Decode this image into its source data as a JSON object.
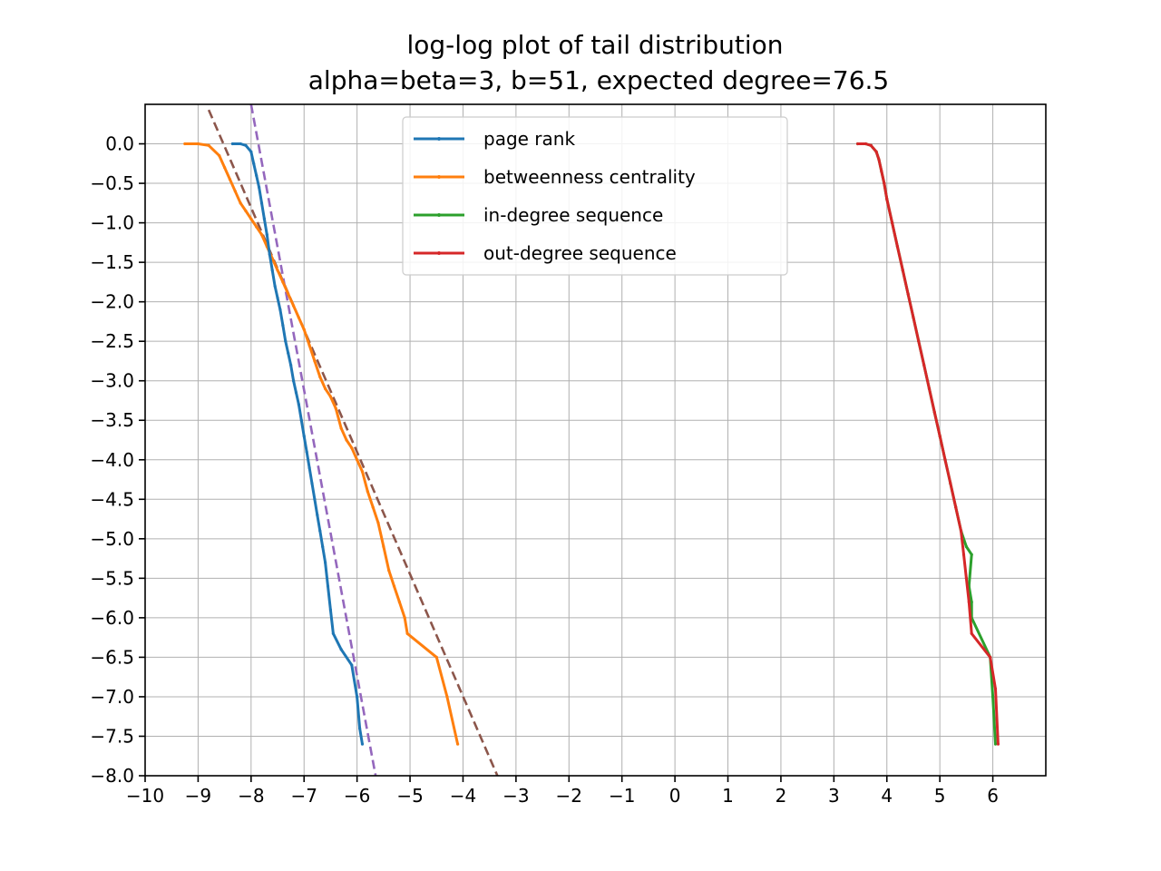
{
  "chart_data": {
    "type": "line",
    "title": "log-log plot of tail distribution",
    "subtitle": "alpha=beta=3, b=51, expected degree=76.5",
    "xlabel": "",
    "ylabel": "",
    "xlim": [
      -10,
      7
    ],
    "ylim": [
      -8,
      0.5
    ],
    "xticks": [
      -10,
      -9,
      -8,
      -7,
      -6,
      -5,
      -4,
      -3,
      -2,
      -1,
      0,
      1,
      2,
      3,
      4,
      5,
      6
    ],
    "xtick_labels": [
      "−10",
      "−9",
      "−8",
      "−7",
      "−6",
      "−5",
      "−4",
      "−3",
      "−2",
      "−1",
      "0",
      "1",
      "2",
      "3",
      "4",
      "5",
      "6"
    ],
    "yticks": [
      0,
      -0.5,
      -1,
      -1.5,
      -2,
      -2.5,
      -3,
      -3.5,
      -4,
      -4.5,
      -5,
      -5.5,
      -6,
      -6.5,
      -7,
      -7.5,
      -8
    ],
    "ytick_labels": [
      "0.0",
      "−0.5",
      "−1.0",
      "−1.5",
      "−2.0",
      "−2.5",
      "−3.0",
      "−3.5",
      "−4.0",
      "−4.5",
      "−5.0",
      "−5.5",
      "−6.0",
      "−6.5",
      "−7.0",
      "−7.5",
      "−8.0"
    ],
    "grid": true,
    "legend_position": "upper-center",
    "series": [
      {
        "name": "page rank",
        "color": "#1f77b4",
        "style": "solid",
        "x": [
          -8.35,
          -8.2,
          -8.1,
          -8.0,
          -7.95,
          -7.9,
          -7.85,
          -7.8,
          -7.75,
          -7.7,
          -7.65,
          -7.6,
          -7.55,
          -7.5,
          -7.45,
          -7.4,
          -7.35,
          -7.3,
          -7.25,
          -7.2,
          -7.15,
          -7.1,
          -7.05,
          -7.0,
          -6.95,
          -6.9,
          -6.85,
          -6.8,
          -6.75,
          -6.7,
          -6.65,
          -6.6,
          -6.55,
          -6.5,
          -6.45,
          -6.3,
          -6.1,
          -6.0,
          -5.95,
          -5.9
        ],
        "y": [
          0.0,
          0.0,
          -0.02,
          -0.1,
          -0.25,
          -0.4,
          -0.55,
          -0.75,
          -0.95,
          -1.15,
          -1.4,
          -1.6,
          -1.8,
          -1.95,
          -2.1,
          -2.3,
          -2.5,
          -2.65,
          -2.8,
          -3.0,
          -3.15,
          -3.3,
          -3.5,
          -3.7,
          -3.9,
          -4.1,
          -4.3,
          -4.5,
          -4.7,
          -4.9,
          -5.1,
          -5.3,
          -5.6,
          -5.9,
          -6.2,
          -6.4,
          -6.6,
          -7.0,
          -7.4,
          -7.6
        ]
      },
      {
        "name": "betweenness centrality",
        "color": "#ff7f0e",
        "style": "solid",
        "x": [
          -9.25,
          -9.0,
          -8.8,
          -8.6,
          -8.5,
          -8.4,
          -8.3,
          -8.2,
          -8.1,
          -8.0,
          -7.9,
          -7.8,
          -7.7,
          -7.6,
          -7.5,
          -7.4,
          -7.3,
          -7.2,
          -7.1,
          -7.0,
          -6.9,
          -6.8,
          -6.7,
          -6.6,
          -6.5,
          -6.4,
          -6.3,
          -6.2,
          -6.1,
          -6.0,
          -5.9,
          -5.8,
          -5.7,
          -5.6,
          -5.5,
          -5.4,
          -5.3,
          -5.2,
          -5.1,
          -5.05,
          -4.5,
          -4.3,
          -4.1
        ],
        "y": [
          0.0,
          0.0,
          -0.02,
          -0.15,
          -0.3,
          -0.45,
          -0.6,
          -0.75,
          -0.85,
          -0.95,
          -1.05,
          -1.15,
          -1.3,
          -1.45,
          -1.6,
          -1.75,
          -1.9,
          -2.05,
          -2.2,
          -2.35,
          -2.55,
          -2.75,
          -2.95,
          -3.1,
          -3.2,
          -3.35,
          -3.6,
          -3.75,
          -3.85,
          -4.0,
          -4.15,
          -4.4,
          -4.6,
          -4.8,
          -5.1,
          -5.4,
          -5.6,
          -5.8,
          -6.0,
          -6.2,
          -6.5,
          -7.0,
          -7.6
        ]
      },
      {
        "name": "in-degree sequence",
        "color": "#2ca02c",
        "style": "solid",
        "x": [
          3.45,
          3.6,
          3.7,
          3.8,
          3.85,
          3.9,
          3.95,
          4.0,
          4.1,
          4.2,
          4.3,
          4.4,
          4.5,
          4.6,
          4.7,
          4.8,
          4.9,
          5.0,
          5.1,
          5.2,
          5.3,
          5.4,
          5.5,
          5.6,
          5.55,
          5.6,
          5.6,
          5.95,
          6.0,
          6.05
        ],
        "y": [
          0.0,
          0.0,
          -0.02,
          -0.1,
          -0.2,
          -0.35,
          -0.5,
          -0.7,
          -1.0,
          -1.3,
          -1.6,
          -1.9,
          -2.2,
          -2.5,
          -2.8,
          -3.1,
          -3.4,
          -3.7,
          -4.0,
          -4.3,
          -4.6,
          -4.9,
          -5.1,
          -5.2,
          -5.6,
          -5.8,
          -6.0,
          -6.5,
          -7.0,
          -7.6
        ]
      },
      {
        "name": "out-degree sequence",
        "color": "#d62728",
        "style": "solid",
        "x": [
          3.45,
          3.6,
          3.7,
          3.8,
          3.85,
          3.9,
          3.95,
          4.0,
          4.1,
          4.2,
          4.3,
          4.4,
          4.5,
          4.6,
          4.7,
          4.8,
          4.9,
          5.0,
          5.1,
          5.2,
          5.3,
          5.4,
          5.45,
          5.5,
          5.55,
          5.6,
          5.95,
          6.05,
          6.1
        ],
        "y": [
          0.0,
          0.0,
          -0.02,
          -0.1,
          -0.2,
          -0.35,
          -0.5,
          -0.7,
          -1.0,
          -1.3,
          -1.6,
          -1.9,
          -2.2,
          -2.5,
          -2.8,
          -3.1,
          -3.4,
          -3.7,
          -4.0,
          -4.3,
          -4.6,
          -4.9,
          -5.2,
          -5.5,
          -5.8,
          -6.2,
          -6.5,
          -6.9,
          -7.6
        ]
      },
      {
        "name": "",
        "color": "#9467bd",
        "style": "dashed",
        "x": [
          -8.0,
          -5.65
        ],
        "y": [
          0.5,
          -8.0
        ]
      },
      {
        "name": "",
        "color": "#8c564b",
        "style": "dashed",
        "x": [
          -8.8,
          -3.35
        ],
        "y": [
          0.43,
          -8.0
        ]
      }
    ]
  }
}
